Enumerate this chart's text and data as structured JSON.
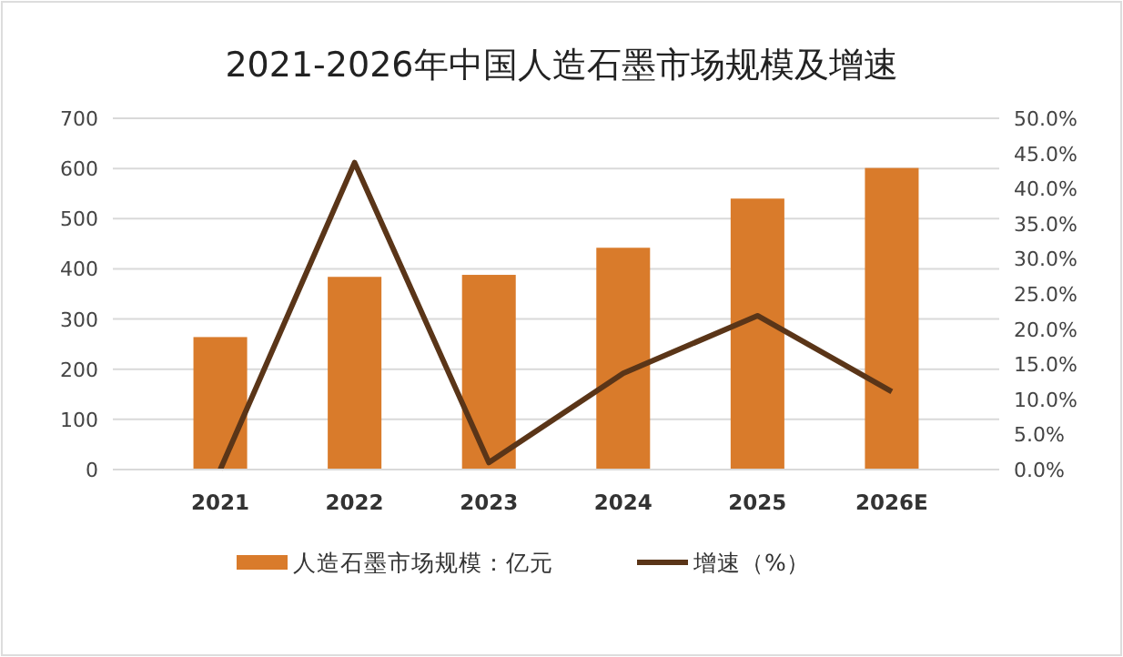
{
  "chart_data": {
    "type": "bar",
    "title": "2021-2026年中国人造石墨市场规模及增速",
    "categories": [
      "2021",
      "2022",
      "2023",
      "2024",
      "2025",
      "2026E"
    ],
    "series": [
      {
        "name": "人造石墨市场规模：亿元",
        "color": "#d97b2b",
        "values": [
          264,
          384,
          388,
          442,
          540,
          601
        ]
      },
      {
        "name": "增速（%）",
        "type": "line",
        "axis": "y2",
        "color": "#5a3518",
        "values": [
          0,
          43.7,
          1.0,
          13.7,
          21.9,
          11.1
        ]
      }
    ],
    "ylim": [
      0,
      700
    ],
    "yticks": [
      0,
      100,
      200,
      300,
      400,
      500,
      600,
      700
    ],
    "y2lim": [
      0,
      50
    ],
    "y2ticks": [
      {
        "value": 0,
        "label": "0.0%"
      },
      {
        "value": 5,
        "label": "5.0%"
      },
      {
        "value": 10,
        "label": "10.0%"
      },
      {
        "value": 15,
        "label": "15.0%"
      },
      {
        "value": 20,
        "label": "20.0%"
      },
      {
        "value": 25,
        "label": "25.0%"
      },
      {
        "value": 30,
        "label": "30.0%"
      },
      {
        "value": 35,
        "label": "35.0%"
      },
      {
        "value": 40,
        "label": "40.0%"
      },
      {
        "value": 45,
        "label": "45.0%"
      },
      {
        "value": 50,
        "label": "50.0%"
      }
    ],
    "grid": "y",
    "legend": "bottom",
    "marker": "none",
    "line_style": "solid"
  }
}
